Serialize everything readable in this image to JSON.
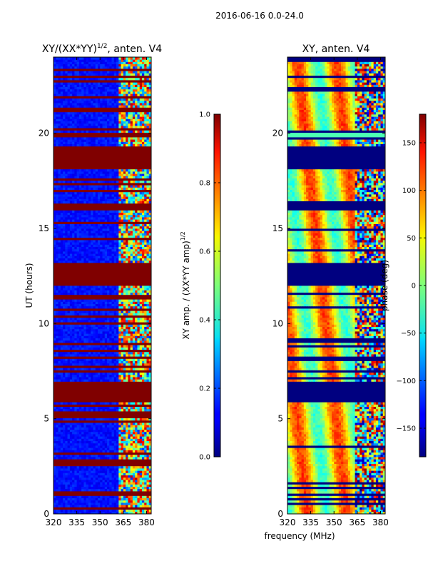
{
  "suptitle": "2016-06-16 0.0-24.0",
  "chart_data": [
    {
      "type": "heatmap",
      "title_main": "XY/(XX*YY)",
      "title_exp": "1/2",
      "title_tail": ", anten. V4",
      "ylabel": "UT (hours)",
      "xlabel": "",
      "xlim": [
        320,
        383
      ],
      "ylim": [
        0,
        24
      ],
      "xticks": [
        "320",
        "335",
        "350",
        "365",
        "380"
      ],
      "xtick_values": [
        320,
        335,
        350,
        365,
        380
      ],
      "yticks": [
        "0",
        "5",
        "10",
        "15",
        "20"
      ],
      "ytick_values": [
        0,
        5,
        10,
        15,
        20
      ],
      "saturated_bands_hours": [
        [
          1.0,
          1.15
        ],
        [
          3.2,
          3.3
        ],
        [
          5.9,
          7.0
        ],
        [
          7.5,
          7.6
        ],
        [
          12.0,
          13.2
        ],
        [
          15.9,
          16.3
        ],
        [
          18.1,
          19.3
        ],
        [
          19.8,
          20.1
        ],
        [
          21.1,
          21.4
        ],
        [
          23.3,
          23.4
        ]
      ],
      "colorbar": {
        "label_main": "XY amp. / (XX*YY amp)",
        "label_exp": "1/2",
        "range": [
          0.0,
          1.0
        ],
        "ticks": [
          "0.0",
          "0.2",
          "0.4",
          "0.6",
          "0.8",
          "1.0"
        ],
        "tick_values": [
          0.0,
          0.2,
          0.4,
          0.6,
          0.8,
          1.0
        ]
      }
    },
    {
      "type": "heatmap",
      "title": "XY, anten. V4",
      "xlabel": "frequency (MHz)",
      "xlim": [
        320,
        383
      ],
      "ylim": [
        0,
        24
      ],
      "xticks": [
        "320",
        "335",
        "350",
        "365",
        "380"
      ],
      "xtick_values": [
        320,
        335,
        350,
        365,
        380
      ],
      "yticks": [
        "0",
        "5",
        "10",
        "15",
        "20"
      ],
      "ytick_values": [
        0,
        5,
        10,
        15,
        20
      ],
      "constant_phase_bands_hours": [
        [
          5.9,
          7.0
        ],
        [
          12.0,
          13.2
        ],
        [
          15.9,
          16.3
        ],
        [
          18.1,
          19.3
        ],
        [
          19.8,
          20.1
        ]
      ],
      "colorbar": {
        "label": "phase (deg)",
        "range": [
          -180,
          180
        ],
        "ticks": [
          "−150",
          "−100",
          "−50",
          "0",
          "50",
          "100",
          "150"
        ],
        "tick_values": [
          -150,
          -100,
          -50,
          0,
          50,
          100,
          150
        ]
      }
    }
  ]
}
